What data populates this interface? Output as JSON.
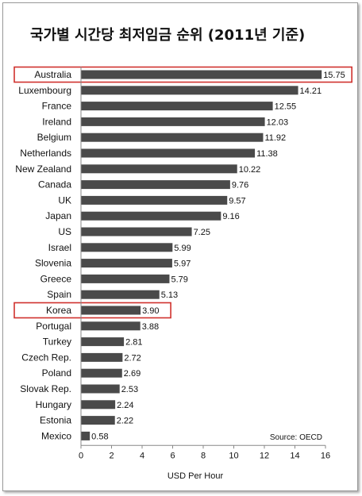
{
  "chart_data": {
    "type": "bar",
    "orientation": "horizontal",
    "title": "국가별 시간당 최저임금 순위 (2011년 기준)",
    "xlabel": "USD Per Hour",
    "ylabel": "",
    "xlim": [
      0,
      16
    ],
    "xticks": [
      "0",
      "2",
      "4",
      "6",
      "8",
      "10",
      "12",
      "14",
      "16"
    ],
    "grid": false,
    "source": "Source: OECD",
    "bar_color": "#4a4a4a",
    "highlight_color": "#d0312d",
    "highlighted": [
      "Australia",
      "Korea"
    ],
    "categories": [
      "Australia",
      "Luxembourg",
      "France",
      "Ireland",
      "Belgium",
      "Netherlands",
      "New Zealand",
      "Canada",
      "UK",
      "Japan",
      "US",
      "Israel",
      "Slovenia",
      "Greece",
      "Spain",
      "Korea",
      "Portugal",
      "Turkey",
      "Czech Rep.",
      "Poland",
      "Slovak Rep.",
      "Hungary",
      "Estonia",
      "Mexico"
    ],
    "values": [
      15.75,
      14.21,
      12.55,
      12.03,
      11.92,
      11.38,
      10.22,
      9.76,
      9.57,
      9.16,
      7.25,
      5.99,
      5.97,
      5.79,
      5.13,
      3.9,
      3.88,
      2.81,
      2.72,
      2.69,
      2.53,
      2.24,
      2.22,
      0.58
    ],
    "value_labels": [
      "15.75",
      "14.21",
      "12.55",
      "12.03",
      "11.92",
      "11.38",
      "10.22",
      "9.76",
      "9.57",
      "9.16",
      "7.25",
      "5.99",
      "5.97",
      "5.79",
      "5.13",
      "3.90",
      "3.88",
      "2.81",
      "2.72",
      "2.69",
      "2.53",
      "2.24",
      "2.22",
      "0.58"
    ]
  }
}
